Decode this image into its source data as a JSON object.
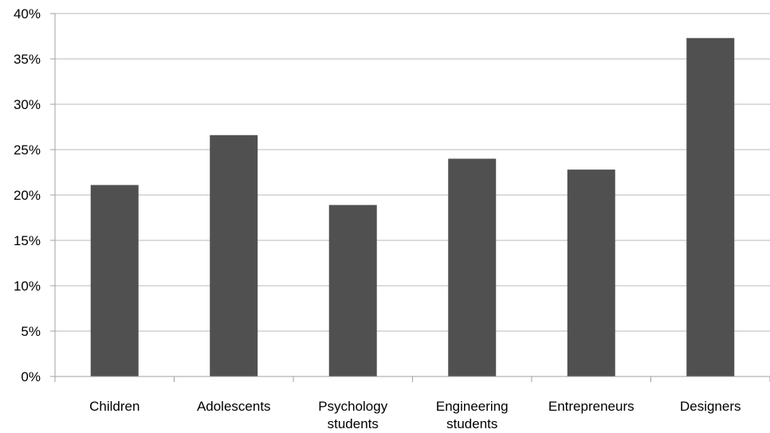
{
  "chart_data": {
    "type": "bar",
    "categories": [
      [
        "Children"
      ],
      [
        "Adolescents"
      ],
      [
        "Psychology",
        "students"
      ],
      [
        "Engineering",
        "students"
      ],
      [
        "Entrepreneurs"
      ],
      [
        "Designers"
      ]
    ],
    "values": [
      21.1,
      26.6,
      18.9,
      24.0,
      22.8,
      37.3
    ],
    "ylim": [
      0,
      40
    ],
    "yticks": [
      0,
      5,
      10,
      15,
      20,
      25,
      30,
      35,
      40
    ],
    "ytick_labels": [
      "0%",
      "5%",
      "10%",
      "15%",
      "20%",
      "25%",
      "30%",
      "35%",
      "40%"
    ],
    "grid": true,
    "legend": "none",
    "title": "",
    "xlabel": "",
    "ylabel": "",
    "colors": {
      "bar": "#505050",
      "grid": "#b8b8b8",
      "axis": "#a0a0a0"
    }
  }
}
